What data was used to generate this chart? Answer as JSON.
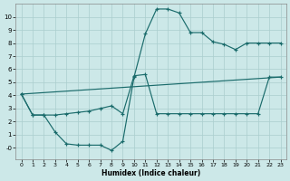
{
  "xlabel": "Humidex (Indice chaleur)",
  "background_color": "#cce8e8",
  "grid_color": "#aacece",
  "line_color": "#1a6b6b",
  "xlim": [
    -0.5,
    23.5
  ],
  "ylim": [
    -0.9,
    11.0
  ],
  "xticks": [
    0,
    1,
    2,
    3,
    4,
    5,
    6,
    7,
    8,
    9,
    10,
    11,
    12,
    13,
    14,
    15,
    16,
    17,
    18,
    19,
    20,
    21,
    22,
    23
  ],
  "yticks": [
    0,
    1,
    2,
    3,
    4,
    5,
    6,
    7,
    8,
    9,
    10
  ],
  "ytick_labels": [
    "-0",
    "1",
    "2",
    "3",
    "4",
    "5",
    "6",
    "7",
    "8",
    "9",
    "10"
  ],
  "curve1_x": [
    0,
    1,
    2,
    3,
    4,
    5,
    6,
    7,
    8,
    9,
    10,
    11,
    12,
    13,
    14,
    15,
    16,
    17,
    18,
    19,
    20,
    21,
    22,
    23
  ],
  "curve1_y": [
    4.1,
    2.5,
    2.5,
    1.2,
    0.3,
    0.2,
    0.2,
    0.2,
    -0.2,
    0.5,
    5.4,
    8.7,
    10.6,
    10.6,
    10.3,
    8.8,
    8.8,
    8.1,
    7.9,
    7.5,
    8.0,
    8.0,
    8.0,
    8.0
  ],
  "curve2_x": [
    0,
    1,
    2,
    3,
    4,
    5,
    6,
    7,
    8,
    9,
    10,
    11,
    12,
    13,
    14,
    15,
    16,
    17,
    18,
    19,
    20,
    21,
    22,
    23
  ],
  "curve2_y": [
    4.1,
    2.5,
    2.5,
    2.5,
    2.6,
    2.7,
    2.8,
    3.0,
    3.2,
    2.6,
    5.5,
    5.6,
    2.6,
    2.6,
    2.6,
    2.6,
    2.6,
    2.6,
    2.6,
    2.6,
    2.6,
    2.6,
    5.4,
    5.4
  ],
  "curve3_x": [
    0,
    23
  ],
  "curve3_y": [
    4.1,
    5.4
  ]
}
